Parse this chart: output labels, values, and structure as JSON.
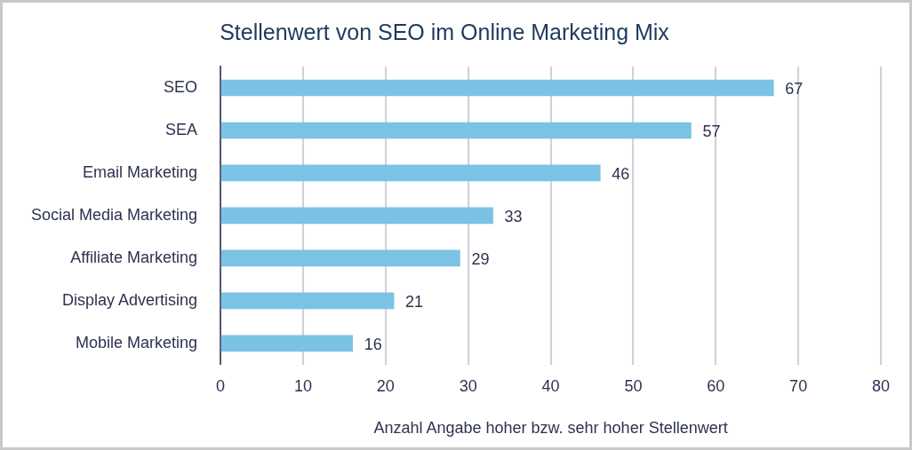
{
  "chart_data": {
    "type": "bar",
    "orientation": "horizontal",
    "title": "Stellenwert von SEO im Online Marketing Mix",
    "xlabel": "Anzahl Angabe hoher bzw. sehr hoher Stellenwert",
    "categories": [
      "SEO",
      "SEA",
      "Email Marketing",
      "Social Media Marketing",
      "Affiliate Marketing",
      "Display Advertising",
      "Mobile Marketing"
    ],
    "values": [
      67,
      57,
      46,
      33,
      29,
      21,
      16
    ],
    "color": "#7ac3e4",
    "xlim": [
      0,
      80
    ],
    "xticks": [
      0,
      10,
      20,
      30,
      40,
      50,
      60,
      70,
      80
    ],
    "grid": "x",
    "data_labels": true,
    "legend": false
  }
}
